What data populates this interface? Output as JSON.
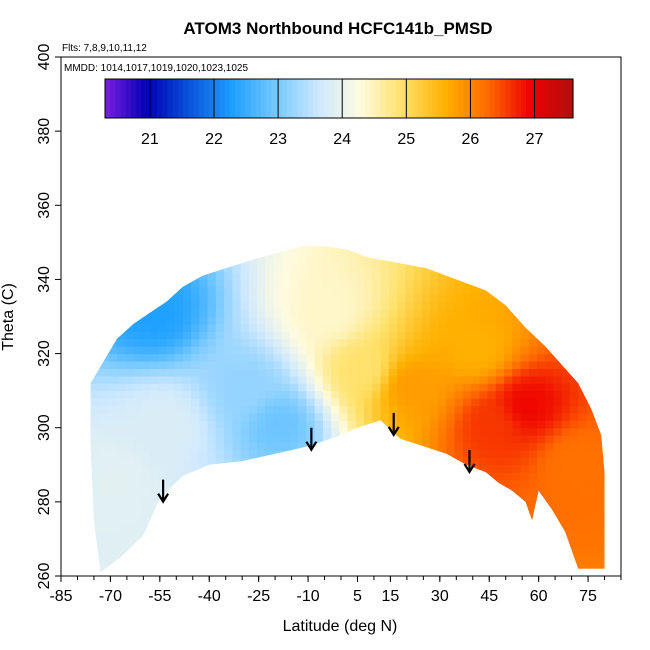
{
  "chart_data": {
    "type": "heatmap",
    "title": "ATOM3 Northbound HCFC141b_PMSD",
    "subtitle_flights": "Flts: 7,8,9,10,11,12",
    "subtitle_dates": "MMDD: 1014,1017,1019,1020,1023,1025",
    "xlabel": "Latitude (deg N)",
    "ylabel": "Theta (C)",
    "xlim": [
      -85,
      85
    ],
    "ylim": [
      260,
      400
    ],
    "x_ticks": [
      -85,
      -70,
      -55,
      -40,
      -25,
      -10,
      5,
      15,
      30,
      45,
      60,
      75
    ],
    "y_ticks": [
      260,
      280,
      300,
      320,
      340,
      360,
      380,
      400
    ],
    "colorbar": {
      "min": 20.3,
      "max": 27.6,
      "ticks": [
        21,
        22,
        23,
        24,
        25,
        26,
        27
      ],
      "colors": [
        "#7a1fe0",
        "#0000b4",
        "#0a55dc",
        "#1ea0ff",
        "#74c8ff",
        "#cce8ff",
        "#fffbe0",
        "#ffe066",
        "#ffb000",
        "#ff6a00",
        "#ee0000",
        "#b01010"
      ]
    },
    "field_boundary": {
      "upper": [
        [
          -76,
          312
        ],
        [
          -72,
          318
        ],
        [
          -68,
          324
        ],
        [
          -63,
          328
        ],
        [
          -58,
          331
        ],
        [
          -53,
          334
        ],
        [
          -48,
          338
        ],
        [
          -42,
          341
        ],
        [
          -35,
          343
        ],
        [
          -28,
          345
        ],
        [
          -20,
          347
        ],
        [
          -12,
          349
        ],
        [
          -5,
          349
        ],
        [
          2,
          348
        ],
        [
          8,
          346
        ],
        [
          14,
          345
        ],
        [
          20,
          344
        ],
        [
          26,
          343
        ],
        [
          32,
          341
        ],
        [
          38,
          339
        ],
        [
          44,
          337
        ],
        [
          50,
          333
        ],
        [
          56,
          327
        ],
        [
          62,
          322
        ],
        [
          68,
          316
        ],
        [
          72,
          312
        ],
        [
          76,
          305
        ],
        [
          79,
          298
        ],
        [
          80,
          288
        ],
        [
          80,
          262
        ]
      ],
      "lower": [
        [
          -76,
          295
        ],
        [
          -75,
          275
        ],
        [
          -73,
          261
        ],
        [
          -67,
          265
        ],
        [
          -60,
          271
        ],
        [
          -55,
          281
        ],
        [
          -48,
          287
        ],
        [
          -40,
          290
        ],
        [
          -30,
          291
        ],
        [
          -20,
          293
        ],
        [
          -10,
          295
        ],
        [
          0,
          298
        ],
        [
          5,
          300
        ],
        [
          12,
          302
        ],
        [
          18,
          297
        ],
        [
          25,
          295
        ],
        [
          32,
          293
        ],
        [
          38,
          290
        ],
        [
          44,
          288
        ],
        [
          48,
          285
        ],
        [
          52,
          283
        ],
        [
          56,
          280
        ],
        [
          58,
          275
        ],
        [
          60,
          283
        ],
        [
          64,
          278
        ],
        [
          68,
          272
        ],
        [
          72,
          262
        ],
        [
          80,
          262
        ]
      ]
    },
    "field_regions": [
      {
        "lat": -55,
        "theta": 300,
        "value": 23.8
      },
      {
        "lat": -30,
        "theta": 310,
        "value": 23.2
      },
      {
        "lat": -20,
        "theta": 300,
        "value": 22.9
      },
      {
        "lat": -5,
        "theta": 330,
        "value": 24.4
      },
      {
        "lat": 5,
        "theta": 315,
        "value": 24.9
      },
      {
        "lat": 20,
        "theta": 310,
        "value": 25.8
      },
      {
        "lat": 40,
        "theta": 320,
        "value": 25.6
      },
      {
        "lat": 45,
        "theta": 300,
        "value": 26.6
      },
      {
        "lat": 55,
        "theta": 305,
        "value": 26.9
      },
      {
        "lat": 70,
        "theta": 290,
        "value": 26.2
      },
      {
        "lat": -58,
        "theta": 330,
        "value": 22.3
      },
      {
        "lat": -70,
        "theta": 285,
        "value": 23.9
      }
    ],
    "arrows_lat": [
      -54,
      -9,
      16,
      39
    ],
    "arrows_theta": [
      286,
      300,
      304,
      294
    ]
  }
}
